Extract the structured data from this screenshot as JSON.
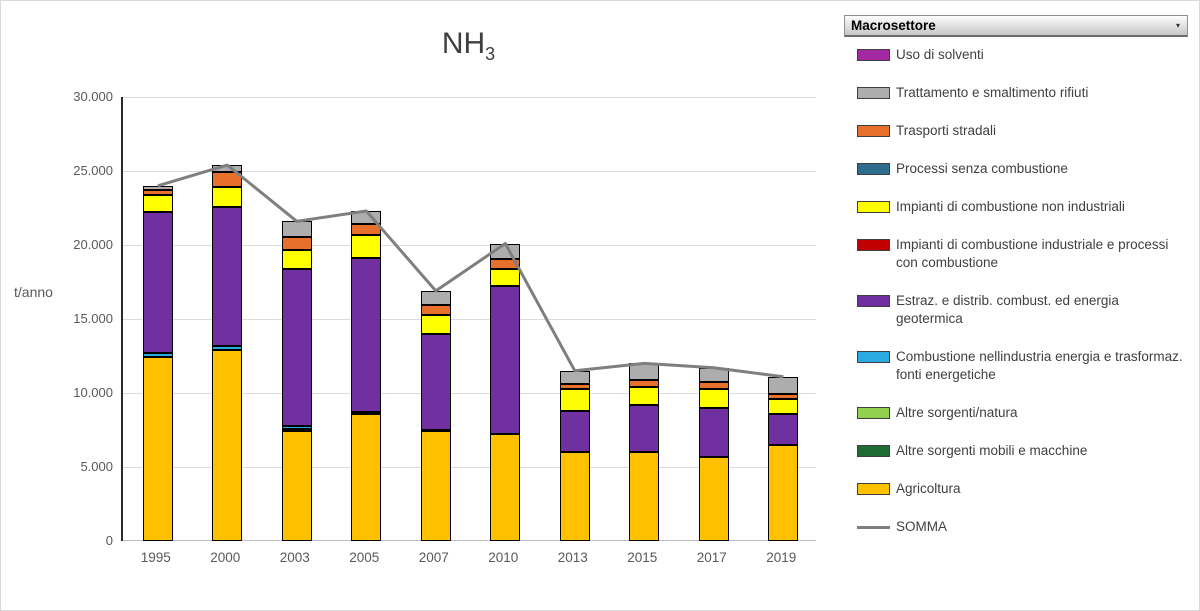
{
  "panel": {
    "dropdown_label": "Macrosettore",
    "dropdown_arrow": "▾"
  },
  "chart_data": {
    "type": "bar",
    "stacked": true,
    "title": "NH",
    "title_subscript": "3",
    "ylabel": "t/anno",
    "ylim": [
      0,
      30000
    ],
    "grid": true,
    "legend_position": "right",
    "ytick_values": [
      0,
      5000,
      10000,
      15000,
      20000,
      25000,
      30000
    ],
    "ytick_labels": [
      "0",
      "5.000",
      "10.000",
      "15.000",
      "20.000",
      "25.000",
      "30.000"
    ],
    "categories": [
      "1995",
      "2000",
      "2003",
      "2005",
      "2007",
      "2010",
      "2013",
      "2015",
      "2017",
      "2019"
    ],
    "series": [
      {
        "name": "Agricoltura",
        "color": "#FFC000",
        "values": [
          12400,
          12900,
          7400,
          8600,
          7400,
          7200,
          6000,
          6000,
          5700,
          6500
        ]
      },
      {
        "name": "Altre sorgenti mobili e macchine",
        "color": "#1E6B34",
        "values": [
          0,
          0,
          0,
          0,
          0,
          0,
          0,
          0,
          0,
          0
        ]
      },
      {
        "name": "Altre sorgenti/natura",
        "color": "#92D050",
        "values": [
          0,
          0,
          150,
          0,
          0,
          0,
          0,
          0,
          0,
          0
        ]
      },
      {
        "name": "Combustione nellindustria energia e trasformaz. fonti energetiche",
        "color": "#2BA9E1",
        "values": [
          300,
          300,
          250,
          100,
          100,
          0,
          0,
          0,
          0,
          0
        ]
      },
      {
        "name": "Estraz. e distrib. combust. ed energia geotermica",
        "color": "#7030A0",
        "values": [
          9500,
          9400,
          10600,
          10400,
          6500,
          10000,
          2800,
          3200,
          3300,
          2100
        ]
      },
      {
        "name": "Impianti di combustione industriale e processi con combustione",
        "color": "#C00000",
        "values": [
          0,
          0,
          0,
          0,
          0,
          0,
          0,
          0,
          0,
          0
        ]
      },
      {
        "name": "Impianti di combustione non industriali",
        "color": "#FFFF00",
        "values": [
          1150,
          1350,
          1250,
          1550,
          1250,
          1150,
          1450,
          1200,
          1300,
          1000
        ]
      },
      {
        "name": "Processi senza combustione",
        "color": "#2E6D8E",
        "values": [
          0,
          0,
          0,
          0,
          0,
          0,
          0,
          0,
          0,
          0
        ]
      },
      {
        "name": "Trasporti stradali",
        "color": "#E8702D",
        "values": [
          400,
          1000,
          900,
          800,
          700,
          700,
          350,
          450,
          450,
          350
        ]
      },
      {
        "name": "Trattamento e smaltimento rifiuti",
        "color": "#ADADAD",
        "values": [
          250,
          450,
          1050,
          850,
          950,
          1050,
          900,
          1150,
          950,
          1150
        ]
      },
      {
        "name": "Uso di solventi",
        "color": "#A229A2",
        "values": [
          0,
          0,
          0,
          0,
          0,
          0,
          0,
          0,
          0,
          0
        ]
      }
    ],
    "line_series": {
      "name": "SOMMA",
      "color": "#7F7F7F",
      "values": [
        24000,
        25400,
        21600,
        22300,
        16900,
        20100,
        11500,
        12000,
        11700,
        11100
      ]
    },
    "legend": [
      {
        "label": "Uso di solventi",
        "color": "#A229A2",
        "type": "box"
      },
      {
        "label": "Trattamento e smaltimento rifiuti",
        "color": "#ADADAD",
        "type": "box"
      },
      {
        "label": "Trasporti stradali",
        "color": "#E8702D",
        "type": "box"
      },
      {
        "label": "Processi senza combustione",
        "color": "#2E6D8E",
        "type": "box"
      },
      {
        "label": "Impianti di combustione non industriali",
        "color": "#FFFF00",
        "type": "box"
      },
      {
        "label": "Impianti di combustione industriale e processi con combustione",
        "color": "#C00000",
        "type": "box"
      },
      {
        "label": "Estraz. e distrib. combust. ed energia geotermica",
        "color": "#7030A0",
        "type": "box"
      },
      {
        "label": "Combustione nellindustria energia e trasformaz. fonti energetiche",
        "color": "#2BA9E1",
        "type": "box"
      },
      {
        "label": "Altre sorgenti/natura",
        "color": "#92D050",
        "type": "box"
      },
      {
        "label": "Altre sorgenti mobili e macchine",
        "color": "#1E6B34",
        "type": "box"
      },
      {
        "label": "Agricoltura",
        "color": "#FFC000",
        "type": "box"
      },
      {
        "label": "SOMMA",
        "color": "#7F7F7F",
        "type": "line"
      }
    ]
  }
}
